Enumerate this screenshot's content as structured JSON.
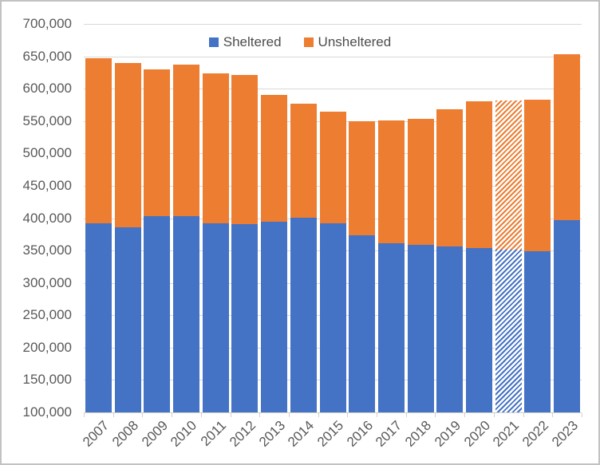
{
  "chart_data": {
    "type": "bar",
    "stacked": true,
    "title": "",
    "xlabel": "",
    "ylabel": "",
    "categories": [
      "2007",
      "2008",
      "2009",
      "2010",
      "2011",
      "2012",
      "2013",
      "2014",
      "2015",
      "2016",
      "2017",
      "2018",
      "2019",
      "2020",
      "2021",
      "2022",
      "2023"
    ],
    "series": [
      {
        "name": "Sheltered",
        "color": "#4472C4",
        "values": [
          391401,
          386361,
          403308,
          403543,
          392316,
          390155,
          394698,
          401051,
          391440,
          373571,
          360867,
          358363,
          356422,
          354386,
          351500,
          348630,
          396494
        ]
      },
      {
        "name": "Unsheltered",
        "color": "#ED7D31",
        "values": [
          255857,
          253423,
          226919,
          233534,
          231472,
          231398,
          195666,
          175399,
          173268,
          176357,
          190129,
          194467,
          211293,
          226080,
          230500,
          233832,
          256610
        ]
      }
    ],
    "hatched_categories": [
      "2021"
    ],
    "ylim": [
      100000,
      700000
    ],
    "ytick_step": 50000,
    "ytick_labels": [
      "700,000",
      "650,000",
      "600,000",
      "550,000",
      "500,000",
      "450,000",
      "400,000",
      "350,000",
      "300,000",
      "250,000",
      "200,000",
      "150,000",
      "100,000"
    ],
    "grid": true,
    "legend_position": "top"
  },
  "legend": {
    "items": [
      {
        "label": "Sheltered",
        "color": "#4472C4"
      },
      {
        "label": "Unsheltered",
        "color": "#ED7D31"
      }
    ]
  },
  "colors": {
    "sheltered": "#4472C4",
    "unsheltered": "#ED7D31",
    "gridline": "#d9d9d9",
    "axis_text": "#595959",
    "frame_border": "#c2c2c2",
    "background": "#ffffff"
  }
}
